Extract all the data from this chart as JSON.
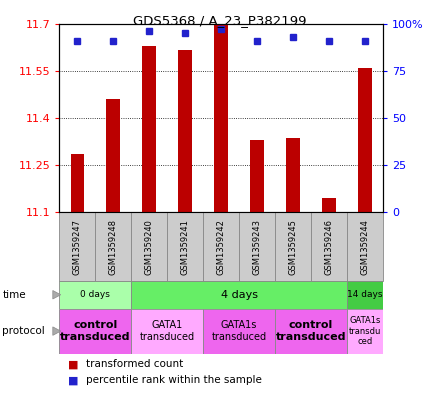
{
  "title": "GDS5368 / A_23_P382199",
  "samples": [
    "GSM1359247",
    "GSM1359248",
    "GSM1359240",
    "GSM1359241",
    "GSM1359242",
    "GSM1359243",
    "GSM1359245",
    "GSM1359246",
    "GSM1359244"
  ],
  "bar_values": [
    11.285,
    11.46,
    11.63,
    11.615,
    11.695,
    11.33,
    11.335,
    11.145,
    11.56
  ],
  "percentile_values": [
    91,
    91,
    96,
    95,
    97,
    91,
    93,
    91,
    91
  ],
  "y_min": 11.1,
  "y_max": 11.7,
  "y_ticks": [
    11.1,
    11.25,
    11.4,
    11.55,
    11.7
  ],
  "y_right_ticks": [
    0,
    25,
    50,
    75,
    100
  ],
  "bar_color": "#bb0000",
  "dot_color": "#2222cc",
  "time_groups": [
    {
      "label": "0 days",
      "start": 0,
      "end": 2,
      "color": "#aaffaa"
    },
    {
      "label": "4 days",
      "start": 2,
      "end": 8,
      "color": "#66ee66"
    },
    {
      "label": "14 days",
      "start": 8,
      "end": 9,
      "color": "#44cc44"
    }
  ],
  "protocol_groups": [
    {
      "label": "control\ntransduced",
      "start": 0,
      "end": 2,
      "color": "#ee66ee",
      "bold": true,
      "fontsize": 8
    },
    {
      "label": "GATA1\ntransduced",
      "start": 2,
      "end": 4,
      "color": "#ffaaff",
      "bold": false,
      "fontsize": 7
    },
    {
      "label": "GATA1s\ntransduced",
      "start": 4,
      "end": 6,
      "color": "#ee66ee",
      "bold": false,
      "fontsize": 7
    },
    {
      "label": "control\ntransduced",
      "start": 6,
      "end": 8,
      "color": "#ee66ee",
      "bold": true,
      "fontsize": 8
    },
    {
      "label": "GATA1s\ntransdu\nced",
      "start": 8,
      "end": 9,
      "color": "#ffaaff",
      "bold": false,
      "fontsize": 6
    }
  ],
  "label_area_color": "#cccccc",
  "label_border_color": "#888888"
}
